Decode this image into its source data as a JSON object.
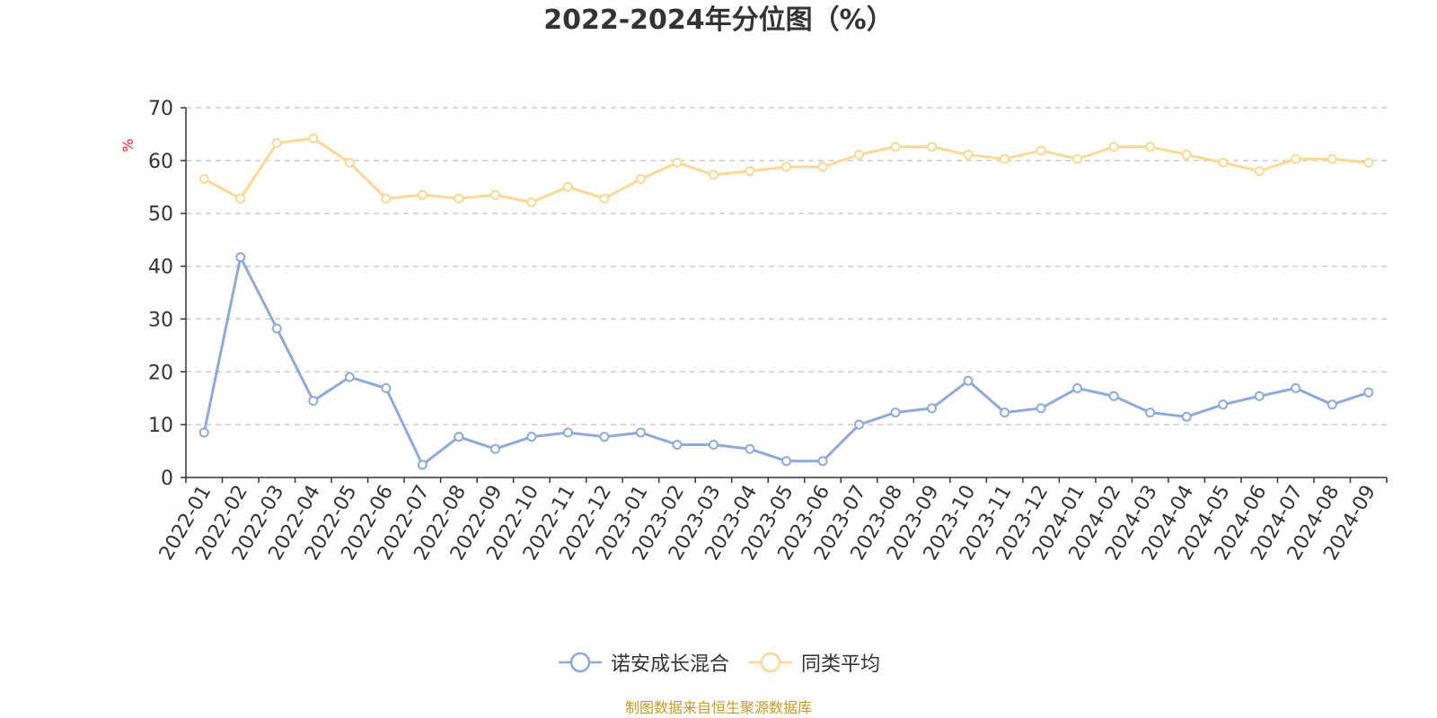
{
  "chart_data": {
    "type": "line",
    "title": "2022-2024年分位图（%）",
    "ylabel": "%",
    "xlabel": "",
    "ylim": [
      0,
      70
    ],
    "yticks": [
      0,
      10,
      20,
      30,
      40,
      50,
      60,
      70
    ],
    "grid": true,
    "legend_position": "bottom-center",
    "categories": [
      "2022-01",
      "2022-02",
      "2022-03",
      "2022-04",
      "2022-05",
      "2022-06",
      "2022-07",
      "2022-08",
      "2022-09",
      "2022-10",
      "2022-11",
      "2022-12",
      "2023-01",
      "2023-02",
      "2023-03",
      "2023-04",
      "2023-05",
      "2023-06",
      "2023-07",
      "2023-08",
      "2023-09",
      "2023-10",
      "2023-11",
      "2023-12",
      "2024-01",
      "2024-02",
      "2024-03",
      "2024-04",
      "2024-05",
      "2024-06",
      "2024-07",
      "2024-08",
      "2024-09"
    ],
    "series": [
      {
        "name": "诺安成长混合",
        "color": "#8eaad9",
        "values": [
          8.5,
          41.7,
          28.2,
          14.5,
          19.0,
          16.9,
          2.4,
          7.7,
          5.4,
          7.7,
          8.5,
          7.7,
          8.5,
          6.2,
          6.2,
          5.4,
          3.1,
          3.1,
          10.0,
          12.3,
          13.1,
          18.3,
          12.3,
          13.1,
          16.9,
          15.4,
          12.3,
          11.5,
          13.8,
          15.4,
          16.9,
          13.8,
          16.1
        ]
      },
      {
        "name": "同类平均",
        "color": "#fad997",
        "values": [
          56.5,
          52.8,
          63.3,
          64.2,
          59.6,
          52.8,
          53.5,
          52.8,
          53.5,
          52.1,
          55.0,
          52.8,
          56.5,
          59.6,
          57.3,
          58.0,
          58.8,
          58.8,
          61.1,
          62.6,
          62.6,
          61.1,
          60.3,
          61.9,
          60.3,
          62.6,
          62.6,
          61.1,
          59.6,
          58.0,
          60.3,
          60.3,
          59.6
        ]
      }
    ]
  },
  "footer": {
    "source_note": "制图数据来自恒生聚源数据库"
  }
}
